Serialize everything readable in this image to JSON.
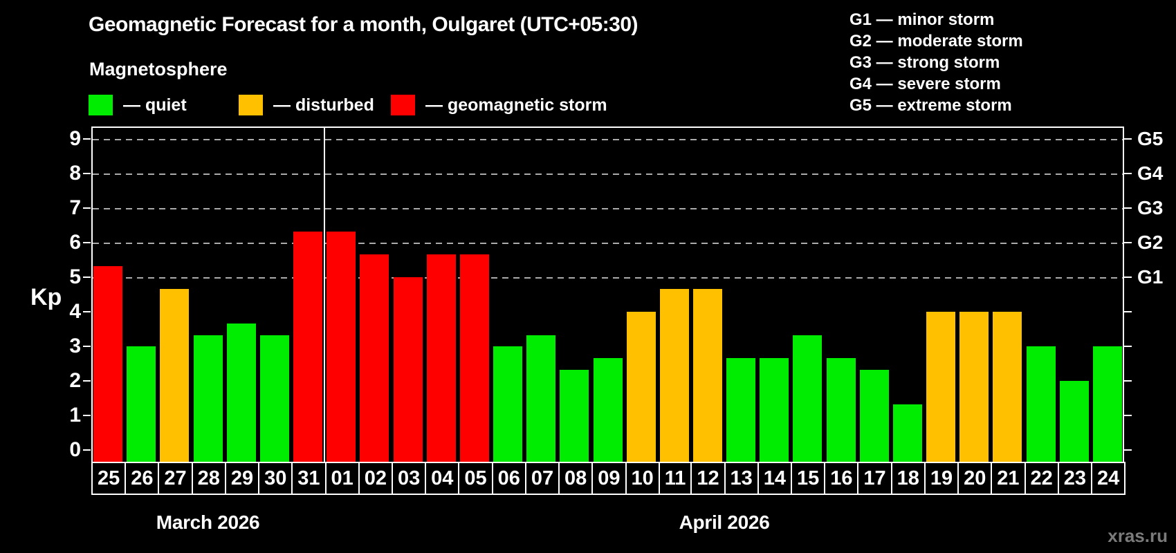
{
  "header": {
    "title": "Geomagnetic Forecast for a month, Oulgaret (UTC+05:30)",
    "subtitle": "Magnetosphere"
  },
  "legend": {
    "items": [
      {
        "label": "— quiet",
        "state": "quiet",
        "color": "#00ec00"
      },
      {
        "label": "— disturbed",
        "state": "disturbed",
        "color": "#ffc000"
      },
      {
        "label": "— geomagnetic storm",
        "state": "storm",
        "color": "#ff0000"
      }
    ]
  },
  "g_legend": {
    "lines": [
      "G1 — minor storm",
      "G2 — moderate storm",
      "G3 — strong storm",
      "G4 — severe storm",
      "G5 — extreme storm"
    ]
  },
  "axes": {
    "y_label": "Kp",
    "left_ticks": [
      0,
      1,
      2,
      3,
      4,
      5,
      6,
      7,
      8,
      9
    ],
    "right_labels": [
      {
        "kp": 5,
        "label": "G1"
      },
      {
        "kp": 6,
        "label": "G2"
      },
      {
        "kp": 7,
        "label": "G3"
      },
      {
        "kp": 8,
        "label": "G4"
      },
      {
        "kp": 9,
        "label": "G5"
      }
    ],
    "gridlines_kp": [
      5,
      6,
      7,
      8,
      9
    ]
  },
  "footer": {
    "watermark": "xras.ru"
  },
  "chart_data": {
    "type": "bar",
    "title": "Geomagnetic Forecast for a month, Oulgaret (UTC+05:30)",
    "xlabel": "",
    "ylabel": "Kp",
    "ylim": [
      0,
      9.4
    ],
    "grid": "dashed horizontal lines at Kp 5,6,7,8,9 (G1–G5)",
    "legend_position": "top-left states, top-right G scale",
    "categories": [
      "25",
      "26",
      "27",
      "28",
      "29",
      "30",
      "31",
      "01",
      "02",
      "03",
      "04",
      "05",
      "06",
      "07",
      "08",
      "09",
      "10",
      "11",
      "12",
      "13",
      "14",
      "15",
      "16",
      "17",
      "18",
      "19",
      "20",
      "21",
      "22",
      "23",
      "24"
    ],
    "values": [
      5.33,
      3.0,
      4.67,
      3.33,
      3.67,
      3.33,
      6.33,
      6.33,
      5.67,
      5.0,
      5.67,
      5.67,
      3.0,
      3.33,
      2.33,
      2.67,
      4.0,
      4.67,
      4.67,
      2.67,
      2.67,
      3.33,
      2.67,
      2.33,
      1.33,
      4.0,
      4.0,
      4.0,
      3.0,
      2.0,
      3.0
    ],
    "states": [
      "storm",
      "quiet",
      "disturbed",
      "quiet",
      "quiet",
      "quiet",
      "storm",
      "storm",
      "storm",
      "storm",
      "storm",
      "storm",
      "quiet",
      "quiet",
      "quiet",
      "quiet",
      "disturbed",
      "disturbed",
      "disturbed",
      "quiet",
      "quiet",
      "quiet",
      "quiet",
      "quiet",
      "quiet",
      "disturbed",
      "disturbed",
      "disturbed",
      "quiet",
      "quiet",
      "quiet"
    ],
    "state_colors": {
      "quiet": "#00ec00",
      "disturbed": "#ffc000",
      "storm": "#ff0000"
    },
    "months": [
      {
        "label": "March 2026",
        "start_index": 0,
        "end_index": 6
      },
      {
        "label": "April 2026",
        "start_index": 7,
        "end_index": 30
      }
    ]
  }
}
